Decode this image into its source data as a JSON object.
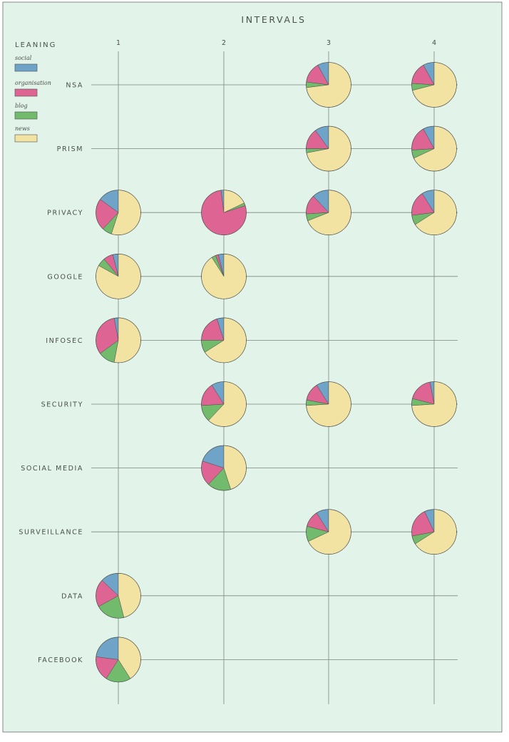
{
  "chart_data": {
    "type": "pie",
    "title": "INTERVALS",
    "legend_title": "LEANING",
    "legend_placement": "top-left",
    "columns": [
      "1",
      "2",
      "3",
      "4"
    ],
    "rows": [
      "NSA",
      "PRISM",
      "PRIVACY",
      "GOOGLE",
      "INFOSEC",
      "SECURITY",
      "SOCIAL MEDIA",
      "SURVEILLANCE",
      "DATA",
      "FACEBOOK"
    ],
    "categories": [
      "social",
      "organisation",
      "blog",
      "news"
    ],
    "colors": {
      "social": "#6fa4c8",
      "organisation": "#de6593",
      "blog": "#72bb6c",
      "news": "#f2e3a3",
      "background": "#e2f3ea",
      "grid": "#7d8580"
    },
    "pies": [
      {
        "row": "NSA",
        "column": "3",
        "values": {
          "social": 0.08,
          "organisation": 0.15,
          "blog": 0.04,
          "news": 0.73
        }
      },
      {
        "row": "NSA",
        "column": "4",
        "values": {
          "social": 0.08,
          "organisation": 0.16,
          "blog": 0.05,
          "news": 0.71
        }
      },
      {
        "row": "PRISM",
        "column": "3",
        "values": {
          "social": 0.1,
          "organisation": 0.15,
          "blog": 0.03,
          "news": 0.72
        }
      },
      {
        "row": "PRISM",
        "column": "4",
        "values": {
          "social": 0.08,
          "organisation": 0.18,
          "blog": 0.06,
          "news": 0.68
        }
      },
      {
        "row": "PRIVACY",
        "column": "1",
        "values": {
          "social": 0.15,
          "organisation": 0.23,
          "blog": 0.07,
          "news": 0.55
        }
      },
      {
        "row": "PRIVACY",
        "column": "2",
        "values": {
          "social": 0.02,
          "organisation": 0.78,
          "blog": 0.02,
          "news": 0.18
        }
      },
      {
        "row": "PRIVACY",
        "column": "3",
        "values": {
          "social": 0.12,
          "organisation": 0.14,
          "blog": 0.05,
          "news": 0.69
        }
      },
      {
        "row": "PRIVACY",
        "column": "4",
        "values": {
          "social": 0.09,
          "organisation": 0.18,
          "blog": 0.07,
          "news": 0.66
        }
      },
      {
        "row": "GOOGLE",
        "column": "1",
        "values": {
          "social": 0.04,
          "organisation": 0.07,
          "blog": 0.06,
          "news": 0.83
        }
      },
      {
        "row": "GOOGLE",
        "column": "2",
        "values": {
          "social": 0.04,
          "organisation": 0.02,
          "blog": 0.03,
          "news": 0.91
        }
      },
      {
        "row": "INFOSEC",
        "column": "1",
        "values": {
          "social": 0.03,
          "organisation": 0.32,
          "blog": 0.12,
          "news": 0.53
        }
      },
      {
        "row": "INFOSEC",
        "column": "2",
        "values": {
          "social": 0.05,
          "organisation": 0.2,
          "blog": 0.09,
          "news": 0.66
        }
      },
      {
        "row": "SECURITY",
        "column": "2",
        "values": {
          "social": 0.09,
          "organisation": 0.17,
          "blog": 0.12,
          "news": 0.62
        }
      },
      {
        "row": "SECURITY",
        "column": "3",
        "values": {
          "social": 0.09,
          "organisation": 0.13,
          "blog": 0.04,
          "news": 0.74
        }
      },
      {
        "row": "SECURITY",
        "column": "4",
        "values": {
          "social": 0.03,
          "organisation": 0.18,
          "blog": 0.05,
          "news": 0.74
        }
      },
      {
        "row": "SOCIAL MEDIA",
        "column": "2",
        "values": {
          "social": 0.2,
          "organisation": 0.18,
          "blog": 0.17,
          "news": 0.45
        }
      },
      {
        "row": "SURVEILLANCE",
        "column": "3",
        "values": {
          "social": 0.09,
          "organisation": 0.12,
          "blog": 0.11,
          "news": 0.68
        }
      },
      {
        "row": "SURVEILLANCE",
        "column": "4",
        "values": {
          "social": 0.07,
          "organisation": 0.21,
          "blog": 0.06,
          "news": 0.66
        }
      },
      {
        "row": "DATA",
        "column": "1",
        "values": {
          "social": 0.13,
          "organisation": 0.2,
          "blog": 0.21,
          "news": 0.46
        }
      },
      {
        "row": "FACEBOOK",
        "column": "1",
        "values": {
          "social": 0.23,
          "organisation": 0.18,
          "blog": 0.18,
          "news": 0.41
        }
      }
    ]
  }
}
